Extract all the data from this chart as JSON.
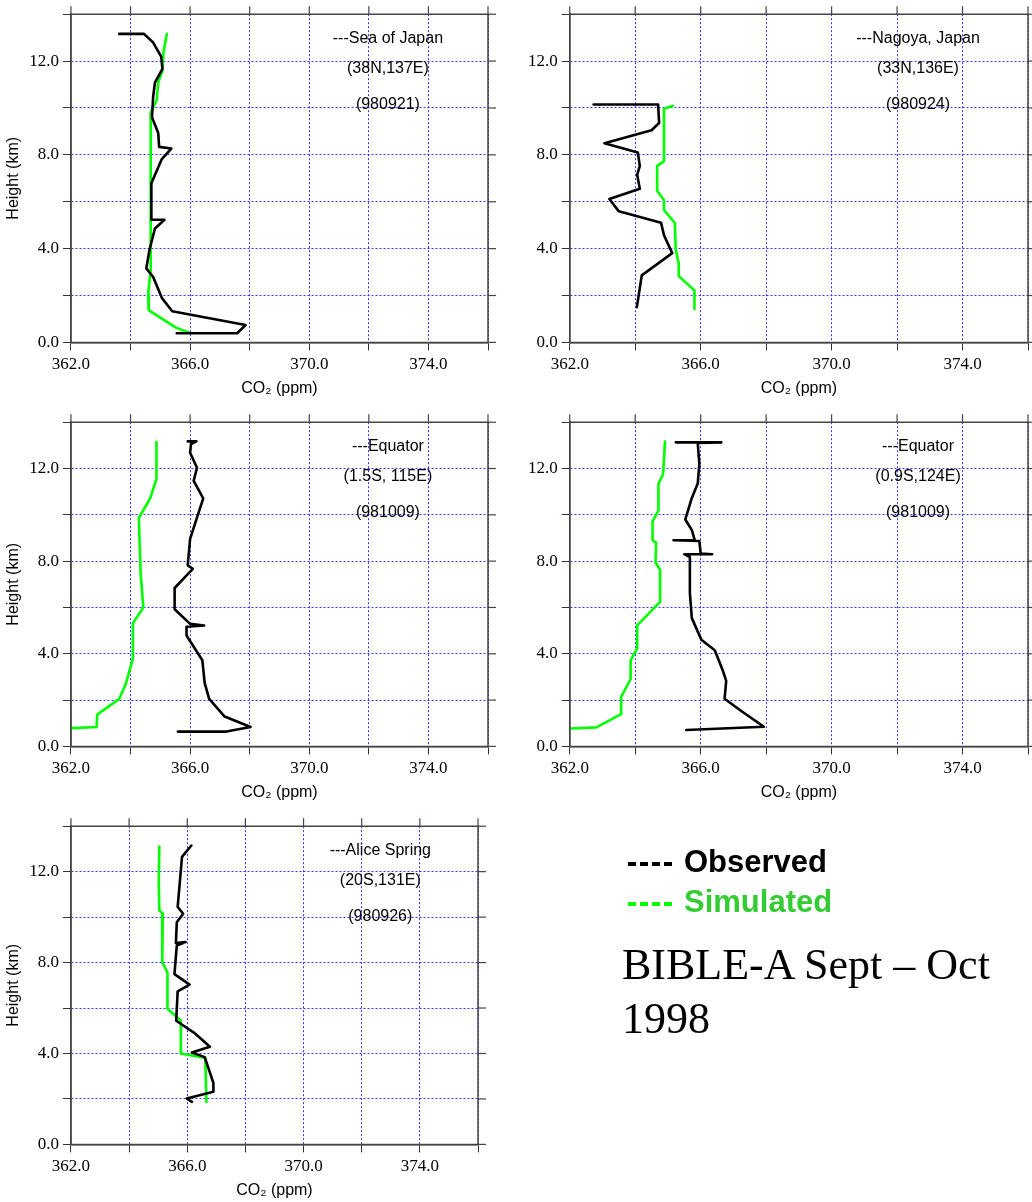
{
  "chart_data": [
    {
      "type": "line",
      "xlabel": "CO₂ (ppm)",
      "ylabel": "Height (km)",
      "annotations": [
        "---Sea of Japan",
        "(38N,137E)",
        "(980921)"
      ],
      "xlim": [
        362,
        376
      ],
      "ylim": [
        0,
        14
      ],
      "xticks": [
        {
          "value": 362,
          "label": "362.0"
        },
        {
          "value": 364,
          "label": null
        },
        {
          "value": 366,
          "label": "366.0"
        },
        {
          "value": 368,
          "label": null
        },
        {
          "value": 370,
          "label": "370.0"
        },
        {
          "value": 372,
          "label": null
        },
        {
          "value": 374,
          "label": "374.0"
        },
        {
          "value": 376,
          "label": null
        }
      ],
      "yticks": [
        {
          "value": 0,
          "label": "0.0"
        },
        {
          "value": 2,
          "label": null
        },
        {
          "value": 4,
          "label": "4.0"
        },
        {
          "value": 6,
          "label": null
        },
        {
          "value": 8,
          "label": "8.0"
        },
        {
          "value": 10,
          "label": null
        },
        {
          "value": 12,
          "label": "12.0"
        },
        {
          "value": 14,
          "label": null
        }
      ],
      "grid": true,
      "series": [
        {
          "color": "#000000",
          "x": [
            363.62,
            364.45,
            364.76,
            365.03,
            365.07,
            364.82,
            364.76,
            364.72,
            364.93,
            364.96,
            365.37,
            365.05,
            364.7,
            364.7,
            365.14,
            364.82,
            364.64,
            364.53,
            364.76,
            365.05,
            365.4,
            367.86,
            367.58,
            365.55
          ],
          "values": [
            13.16,
            13.16,
            12.79,
            12.19,
            11.67,
            11.08,
            10.49,
            9.6,
            8.93,
            8.34,
            8.27,
            7.82,
            6.79,
            5.23,
            5.23,
            4.86,
            3.97,
            3.16,
            2.79,
            1.9,
            1.33,
            0.74,
            0.39,
            0.39
          ]
        },
        {
          "color": "#00ff00",
          "x": [
            365.22,
            365.11,
            365.07,
            364.93,
            364.88,
            364.68,
            364.68,
            364.67,
            364.68,
            364.59,
            364.61,
            365.51,
            366.01
          ],
          "values": [
            13.16,
            12.41,
            11.6,
            11.08,
            10.34,
            9.82,
            8.27,
            5.3,
            3.08,
            2.04,
            1.38,
            0.64,
            0.39
          ]
        }
      ]
    },
    {
      "type": "line",
      "xlabel": "CO₂ (ppm)",
      "annotations": [
        "---Nagoya, Japan",
        "(33N,136E)",
        "(980924)"
      ],
      "xlim": [
        362,
        376
      ],
      "ylim": [
        0,
        14
      ],
      "xticks": [
        {
          "value": 362,
          "label": "362.0"
        },
        {
          "value": 364,
          "label": null
        },
        {
          "value": 366,
          "label": "366.0"
        },
        {
          "value": 368,
          "label": null
        },
        {
          "value": 370,
          "label": "370.0"
        },
        {
          "value": 372,
          "label": null
        },
        {
          "value": 374,
          "label": "374.0"
        },
        {
          "value": 376,
          "label": null
        }
      ],
      "yticks": [
        {
          "value": 0,
          "label": "0.0"
        },
        {
          "value": 2,
          "label": null
        },
        {
          "value": 4,
          "label": "4.0"
        },
        {
          "value": 6,
          "label": null
        },
        {
          "value": 8,
          "label": "8.0"
        },
        {
          "value": 10,
          "label": null
        },
        {
          "value": 12,
          "label": "12.0"
        },
        {
          "value": 14,
          "label": null
        }
      ],
      "grid": true,
      "series": [
        {
          "color": "#000000",
          "x": [
            362.73,
            364.7,
            364.73,
            364.5,
            363.06,
            364.08,
            364.14,
            364.06,
            364.14,
            363.21,
            363.5,
            364.79,
            364.88,
            365.13,
            364.2,
            364.05
          ],
          "values": [
            10.15,
            10.15,
            9.36,
            9.05,
            8.49,
            8.1,
            7.53,
            7.15,
            6.55,
            6.12,
            5.59,
            5.1,
            4.57,
            3.81,
            2.86,
            1.5
          ]
        },
        {
          "color": "#00ff00",
          "x": [
            365.15,
            364.88,
            364.88,
            364.67,
            364.67,
            364.88,
            364.88,
            365.21,
            365.24,
            365.33,
            365.33,
            365.81,
            365.81
          ],
          "values": [
            10.09,
            9.97,
            7.73,
            7.53,
            6.47,
            6.06,
            5.64,
            5.1,
            3.96,
            3.36,
            2.83,
            2.22,
            1.43
          ]
        }
      ]
    },
    {
      "type": "line",
      "xlabel": "CO₂ (ppm)",
      "ylabel": "Height (km)",
      "annotations": [
        "---Equator",
        "(1.5S, 115E)",
        "(981009)"
      ],
      "xlim": [
        362,
        376
      ],
      "ylim": [
        0,
        14
      ],
      "xticks": [
        {
          "value": 362,
          "label": "362.0"
        },
        {
          "value": 364,
          "label": null
        },
        {
          "value": 366,
          "label": "366.0"
        },
        {
          "value": 368,
          "label": null
        },
        {
          "value": 370,
          "label": "370.0"
        },
        {
          "value": 372,
          "label": null
        },
        {
          "value": 374,
          "label": "374.0"
        },
        {
          "value": 376,
          "label": null
        }
      ],
      "yticks": [
        {
          "value": 0,
          "label": "0.0"
        },
        {
          "value": 2,
          "label": null
        },
        {
          "value": 4,
          "label": "4.0"
        },
        {
          "value": 6,
          "label": null
        },
        {
          "value": 8,
          "label": "8.0"
        },
        {
          "value": 10,
          "label": null
        },
        {
          "value": 12,
          "label": "12.0"
        },
        {
          "value": 14,
          "label": null
        }
      ],
      "grid": true,
      "series": [
        {
          "color": "#000000",
          "x": [
            365.92,
            366.21,
            366.03,
            366.0,
            366.23,
            366.12,
            366.44,
            366.0,
            365.92,
            366.09,
            365.48,
            365.48,
            366.0,
            366.47,
            365.88,
            365.88,
            366.41,
            366.49,
            366.64,
            367.16,
            368.03,
            367.22,
            365.59
          ],
          "values": [
            13.17,
            13.17,
            13.06,
            12.68,
            12.03,
            11.47,
            10.71,
            8.96,
            7.82,
            7.67,
            6.84,
            5.92,
            5.29,
            5.22,
            5.17,
            4.79,
            3.72,
            2.73,
            2.05,
            1.29,
            0.84,
            0.64,
            0.64
          ]
        },
        {
          "color": "#00ff00",
          "x": [
            364.87,
            364.87,
            364.66,
            364.28,
            364.34,
            364.43,
            364.08,
            364.08,
            363.85,
            363.62,
            362.88,
            362.86,
            362.02
          ],
          "values": [
            13.14,
            11.55,
            10.71,
            9.87,
            7.44,
            6.0,
            5.32,
            3.8,
            2.73,
            2.05,
            1.37,
            0.84,
            0.79
          ]
        }
      ]
    },
    {
      "type": "line",
      "xlabel": "CO₂ (ppm)",
      "annotations": [
        "---Equator",
        "(0.9S,124E)",
        "(981009)"
      ],
      "xlim": [
        362,
        376
      ],
      "ylim": [
        0,
        14
      ],
      "xticks": [
        {
          "value": 362,
          "label": "362.0"
        },
        {
          "value": 364,
          "label": null
        },
        {
          "value": 366,
          "label": "366.0"
        },
        {
          "value": 368,
          "label": null
        },
        {
          "value": 370,
          "label": "370.0"
        },
        {
          "value": 372,
          "label": null
        },
        {
          "value": 374,
          "label": "374.0"
        },
        {
          "value": 376,
          "label": null
        }
      ],
      "yticks": [
        {
          "value": 0,
          "label": "0.0"
        },
        {
          "value": 2,
          "label": null
        },
        {
          "value": 4,
          "label": "4.0"
        },
        {
          "value": 6,
          "label": null
        },
        {
          "value": 8,
          "label": "8.0"
        },
        {
          "value": 10,
          "label": null
        },
        {
          "value": 12,
          "label": "12.0"
        },
        {
          "value": 14,
          "label": null
        }
      ],
      "grid": true,
      "series": [
        {
          "color": "#000000",
          "x": [
            365.24,
            366.63,
            365.91,
            365.96,
            365.91,
            365.73,
            365.53,
            365.73,
            365.82,
            365.17,
            365.96,
            366.0,
            366.35,
            365.5,
            365.67,
            365.67,
            365.73,
            366.02,
            366.43,
            366.67,
            366.78,
            366.73,
            367.25,
            367.93,
            365.56
          ],
          "values": [
            13.13,
            13.13,
            13.1,
            12.2,
            11.35,
            10.73,
            9.8,
            9.34,
            8.9,
            8.9,
            8.87,
            8.33,
            8.3,
            8.3,
            8.18,
            6.63,
            5.54,
            4.61,
            4.15,
            3.3,
            2.83,
            2.06,
            1.52,
            0.85,
            0.71
          ]
        },
        {
          "color": "#00ff00",
          "x": [
            364.91,
            364.85,
            364.71,
            364.71,
            364.53,
            364.53,
            364.64,
            364.62,
            364.76,
            364.76,
            364.06,
            364.06,
            363.86,
            363.86,
            363.57,
            363.57,
            362.81,
            362.02
          ],
          "values": [
            13.16,
            11.74,
            11.35,
            10.19,
            9.72,
            8.9,
            8.8,
            7.94,
            7.63,
            6.24,
            5.23,
            4.23,
            3.72,
            2.91,
            2.14,
            1.39,
            0.82,
            0.77
          ]
        }
      ]
    },
    {
      "type": "line",
      "xlabel": "CO₂ (ppm)",
      "ylabel": "Height (km)",
      "annotations": [
        "---Alice Spring",
        "(20S,131E)",
        "(980926)"
      ],
      "xlim": [
        362,
        376
      ],
      "ylim": [
        0,
        14
      ],
      "xticks": [
        {
          "value": 362,
          "label": "362.0"
        },
        {
          "value": 364,
          "label": null
        },
        {
          "value": 366,
          "label": "366.0"
        },
        {
          "value": 368,
          "label": null
        },
        {
          "value": 370,
          "label": "370.0"
        },
        {
          "value": 372,
          "label": null
        },
        {
          "value": 374,
          "label": "374.0"
        },
        {
          "value": 376,
          "label": null
        }
      ],
      "yticks": [
        {
          "value": 0,
          "label": "0.0"
        },
        {
          "value": 2,
          "label": null
        },
        {
          "value": 4,
          "label": "4.0"
        },
        {
          "value": 6,
          "label": null
        },
        {
          "value": 8,
          "label": "8.0"
        },
        {
          "value": 10,
          "label": null
        },
        {
          "value": 12,
          "label": "12.0"
        },
        {
          "value": 14,
          "label": null
        }
      ],
      "grid": true,
      "legend": "right",
      "series": [
        {
          "name": "Observed",
          "color": "#000000",
          "x": [
            366.14,
            365.82,
            365.67,
            365.86,
            365.64,
            365.61,
            365.94,
            365.64,
            365.56,
            366.08,
            365.67,
            365.62,
            366.24,
            366.78,
            366.16,
            366.6,
            366.9,
            366.9,
            365.98,
            366.16
          ],
          "values": [
            13.15,
            12.65,
            10.45,
            10.15,
            9.77,
            8.86,
            8.9,
            8.75,
            7.49,
            7.03,
            6.73,
            5.44,
            4.91,
            4.3,
            4.04,
            3.84,
            2.7,
            2.32,
            2.02,
            1.87
          ]
        },
        {
          "name": "Simulated",
          "color": "#00ff00",
          "x": [
            365.04,
            365.02,
            365.04,
            365.16,
            365.14,
            365.32,
            365.32,
            365.78,
            365.78,
            366.62,
            366.66
          ],
          "values": [
            13.11,
            11.52,
            10.3,
            10.15,
            8.02,
            7.56,
            5.97,
            5.44,
            4.0,
            3.8,
            1.87
          ]
        }
      ]
    },
    {
      "type": "other",
      "title": "BIBLE-A Sept – Oct 1998"
    }
  ]
}
